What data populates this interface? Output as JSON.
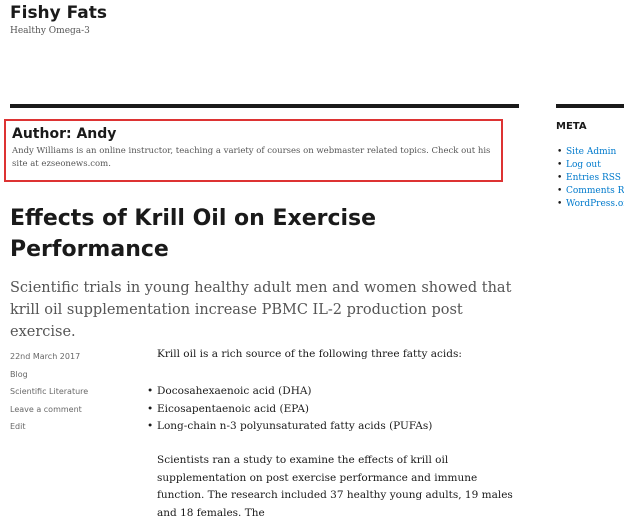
{
  "site": {
    "title": "Fishy Fats",
    "tagline": "Healthy Omega-3"
  },
  "author_box": {
    "heading": "Author: Andy",
    "bio": "Andy Williams is an online instructor, teaching a variety of courses on webmaster related topics. Check out his site at ezseonews.com."
  },
  "post": {
    "title": "Effects of Krill Oil on Exercise Performance",
    "excerpt": "Scientific trials in young healthy adult men and women showed that krill oil supplementation increase PBMC IL-2 production post exercise.",
    "meta": [
      "22nd March 2017",
      "Blog",
      "Scientific Literature",
      "Leave a comment",
      "Edit"
    ],
    "intro": "Krill oil is a rich source of the following three fatty acids:",
    "list": [
      "Docosahexaenoic acid (DHA)",
      "Eicosapentaenoic acid (EPA)",
      "Long-chain n-3 polyunsaturated fatty acids (PUFAs)"
    ],
    "paragraph": "Scientists ran a study to examine the effects of krill oil supplementation on post exercise performance and immune function. The research included 37 healthy young adults, 19 males and 18 females.  The"
  },
  "sidebar": {
    "heading": "META",
    "links": [
      "Site Admin",
      "Log out",
      "Entries RSS",
      "Comments RSS",
      "WordPress.org"
    ]
  }
}
